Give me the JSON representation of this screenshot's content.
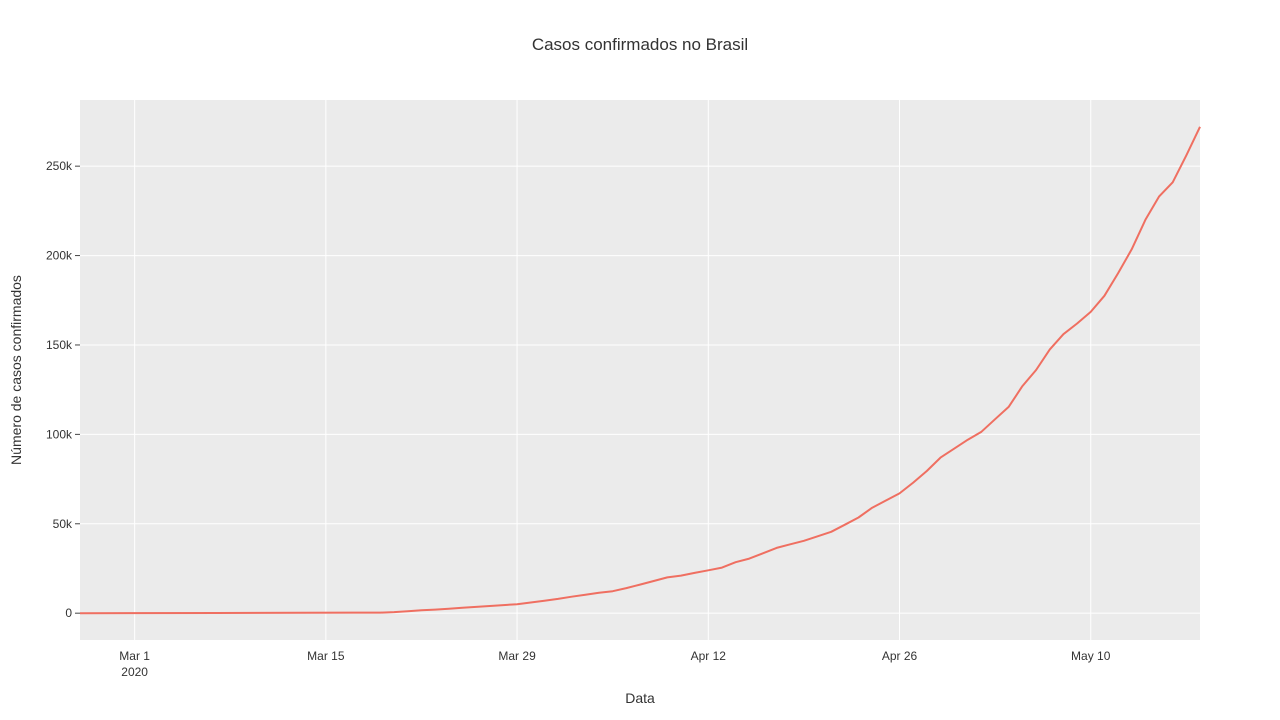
{
  "chart_data": {
    "type": "line",
    "title": "Casos confirmados no Brasil",
    "xlabel": "Data",
    "ylabel": "Número de casos confirmados",
    "x_ticks": [
      {
        "date": "2020-03-01",
        "label": "Mar 1",
        "sublabel": "2020"
      },
      {
        "date": "2020-03-15",
        "label": "Mar 15"
      },
      {
        "date": "2020-03-29",
        "label": "Mar 29"
      },
      {
        "date": "2020-04-12",
        "label": "Apr 12"
      },
      {
        "date": "2020-04-26",
        "label": "Apr 26"
      },
      {
        "date": "2020-05-10",
        "label": "May 10"
      }
    ],
    "y_ticks": [
      {
        "value": 0,
        "label": "0"
      },
      {
        "value": 50000,
        "label": "50k"
      },
      {
        "value": 100000,
        "label": "100k"
      },
      {
        "value": 150000,
        "label": "150k"
      },
      {
        "value": 200000,
        "label": "200k"
      },
      {
        "value": 250000,
        "label": "250k"
      }
    ],
    "xlim": [
      "2020-02-26",
      "2020-05-18"
    ],
    "ylim": [
      -15000,
      287000
    ],
    "grid": true,
    "colors": {
      "line": "#EF6F61",
      "plot_bg": "#EBEBEB",
      "grid": "#FFFFFF"
    },
    "series": [
      {
        "x": [
          "2020-02-26",
          "2020-03-07",
          "2020-03-13",
          "2020-03-17",
          "2020-03-19",
          "2020-03-20",
          "2020-03-21",
          "2020-03-22",
          "2020-03-23",
          "2020-03-24",
          "2020-03-25",
          "2020-03-26",
          "2020-03-27",
          "2020-03-28",
          "2020-03-29",
          "2020-03-30",
          "2020-03-31",
          "2020-04-01",
          "2020-04-02",
          "2020-04-03",
          "2020-04-04",
          "2020-04-05",
          "2020-04-06",
          "2020-04-07",
          "2020-04-08",
          "2020-04-09",
          "2020-04-10",
          "2020-04-11",
          "2020-04-12",
          "2020-04-13",
          "2020-04-14",
          "2020-04-15",
          "2020-04-16",
          "2020-04-17",
          "2020-04-18",
          "2020-04-19",
          "2020-04-20",
          "2020-04-21",
          "2020-04-22",
          "2020-04-23",
          "2020-04-24",
          "2020-04-25",
          "2020-04-26",
          "2020-04-27",
          "2020-04-28",
          "2020-04-29",
          "2020-04-30",
          "2020-05-01",
          "2020-05-02",
          "2020-05-03",
          "2020-05-04",
          "2020-05-05",
          "2020-05-06",
          "2020-05-07",
          "2020-05-08",
          "2020-05-09",
          "2020-05-10",
          "2020-05-11",
          "2020-05-12",
          "2020-05-13",
          "2020-05-14",
          "2020-05-15",
          "2020-05-16",
          "2020-05-17",
          "2020-05-18"
        ],
        "y": [
          0,
          100,
          200,
          300,
          300,
          600,
          1100,
          1600,
          2000,
          2500,
          3000,
          3500,
          4000,
          4500,
          5000,
          6000,
          7000,
          8000,
          9200,
          10300,
          11400,
          12300,
          14000,
          16000,
          18000,
          20000,
          21000,
          22500,
          24000,
          25500,
          28500,
          30500,
          33500,
          36500,
          38500,
          40500,
          43000,
          45500,
          49500,
          53500,
          59000,
          63000,
          67000,
          73000,
          79500,
          87000,
          92000,
          97000,
          101500,
          108500,
          115500,
          127000,
          136000,
          147500,
          156000,
          162000,
          168500,
          177500,
          190000,
          203500,
          220000,
          233000,
          241000,
          256000,
          272000
        ]
      }
    ]
  }
}
